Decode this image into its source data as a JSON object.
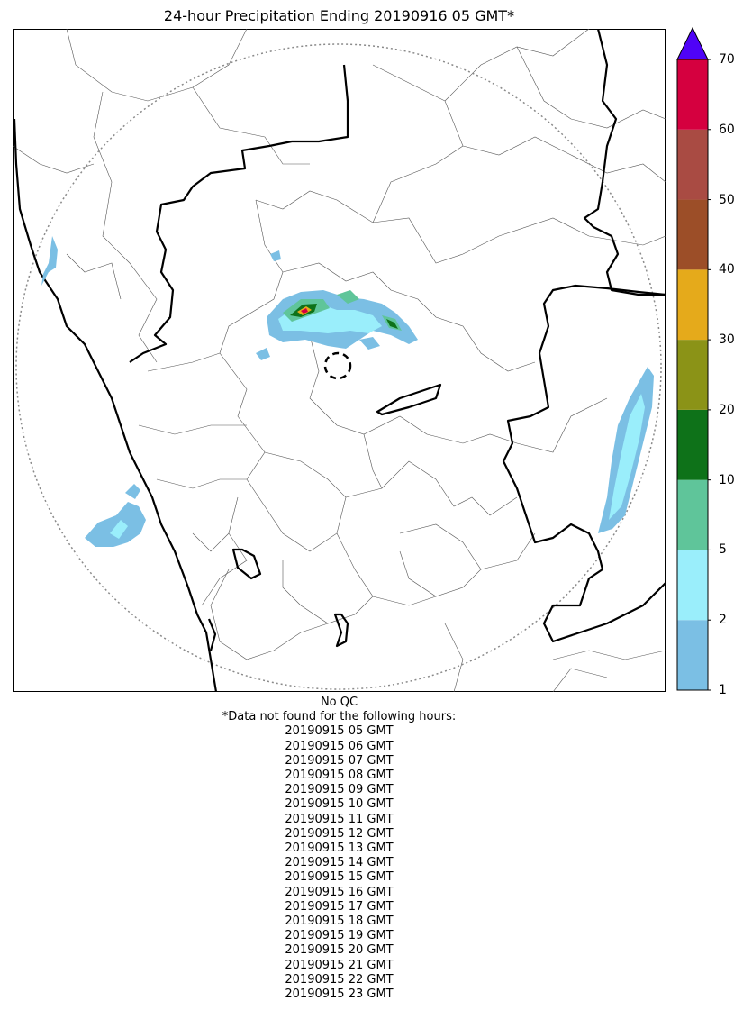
{
  "title": "24-hour Precipitation Ending 20190916 05 GMT*",
  "qc_label": "No QC",
  "missing_header": "*Data not found for the following hours:",
  "missing_hours": [
    "20190915 05 GMT",
    "20190915 06 GMT",
    "20190915 07 GMT",
    "20190915 08 GMT",
    "20190915 09 GMT",
    "20190915 10 GMT",
    "20190915 11 GMT",
    "20190915 12 GMT",
    "20190915 13 GMT",
    "20190915 14 GMT",
    "20190915 15 GMT",
    "20190915 16 GMT",
    "20190915 17 GMT",
    "20190915 18 GMT",
    "20190915 19 GMT",
    "20190915 20 GMT",
    "20190915 21 GMT",
    "20190915 22 GMT",
    "20190915 23 GMT"
  ],
  "colorbar": {
    "ticks": [
      "1",
      "2",
      "5",
      "10",
      "20",
      "30",
      "40",
      "50",
      "60",
      "70"
    ],
    "colors": [
      "#7bbfe4",
      "#9aeefb",
      "#5fc59a",
      "#0e7219",
      "#8b9317",
      "#e5aa1b",
      "#9c4e28",
      "#a94b43",
      "#d5003f"
    ],
    "extend_color": "#4f03f7"
  }
}
